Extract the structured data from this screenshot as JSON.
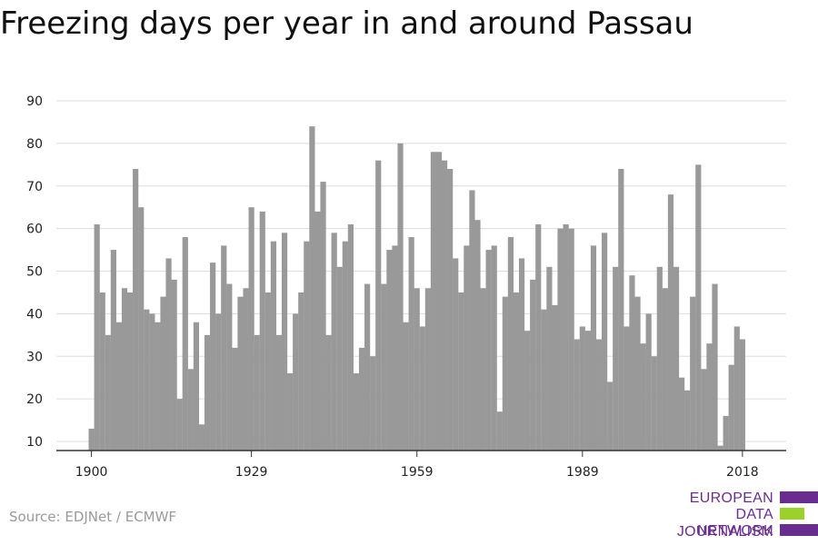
{
  "title": "Freezing days per year in and around Passau",
  "source": "Source: EDJNet / ECMWF",
  "logo": {
    "line1": "EUROPEAN",
    "line2": "DATA JOURNALISM",
    "line3": "NETWORK"
  },
  "colors": {
    "bar": "#999999",
    "grid": "#dddddd",
    "logo_purple": "#6b2c91",
    "logo_green": "#9ad12b"
  },
  "chart_data": {
    "type": "bar",
    "title": "Freezing days per year in and around Passau",
    "xlabel": "",
    "ylabel": "",
    "x_ticks": [
      1900,
      1929,
      1959,
      1989,
      2018
    ],
    "y_ticks": [
      10,
      20,
      30,
      40,
      50,
      60,
      70,
      80,
      90
    ],
    "ylim": [
      8,
      92
    ],
    "grid": true,
    "start_year": 1900,
    "values": [
      13,
      61,
      45,
      35,
      55,
      38,
      46,
      45,
      74,
      65,
      41,
      40,
      38,
      44,
      53,
      48,
      20,
      58,
      27,
      38,
      14,
      35,
      52,
      40,
      56,
      47,
      32,
      44,
      46,
      65,
      35,
      64,
      45,
      57,
      35,
      59,
      26,
      40,
      45,
      57,
      84,
      64,
      71,
      35,
      59,
      51,
      57,
      61,
      26,
      32,
      47,
      30,
      76,
      47,
      55,
      56,
      80,
      38,
      58,
      46,
      37,
      46,
      78,
      78,
      76,
      74,
      53,
      45,
      56,
      69,
      62,
      46,
      55,
      56,
      17,
      44,
      58,
      45,
      53,
      36,
      48,
      61,
      41,
      51,
      42,
      60,
      61,
      60,
      34,
      37,
      36,
      56,
      34,
      59,
      24,
      51,
      74,
      37,
      49,
      44,
      33,
      40,
      30,
      51,
      46,
      68,
      51,
      25,
      22,
      44,
      75,
      27,
      33,
      47,
      9,
      16,
      28,
      37,
      34
    ]
  }
}
